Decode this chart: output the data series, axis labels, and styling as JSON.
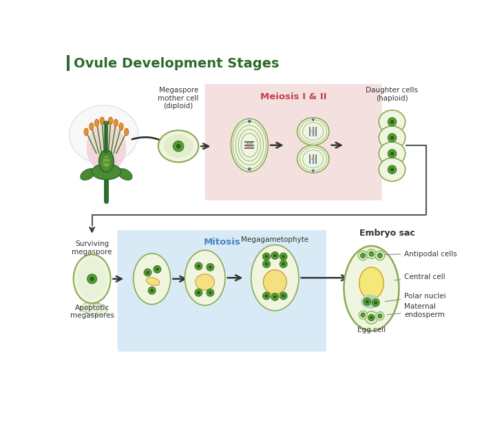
{
  "title": "Ovule Development Stages",
  "title_color": "#2d6a2d",
  "title_bar_color": "#2d6a2d",
  "background": "#ffffff",
  "top_row": {
    "meiosis_box_color": "#f5e0e0",
    "meiosis_title": "Meiosis I & II",
    "meiosis_title_color": "#c0404a",
    "megaspore_label": "Megaspore\nmother cell\n(diploid)",
    "daughter_label": "Daughter cells\n(haploid)"
  },
  "bottom_row": {
    "mitosis_box_color": "#d8eaf5",
    "mitosis_title": "Mitosis",
    "mitosis_title_color": "#4a80c0",
    "surviving_label": "Surviving\nmegaspore",
    "apoptotic_label": "Apoptotic\nmegaspores",
    "megagametophyte_label": "Megagametophyte",
    "embryo_sac_label": "Embryo sac"
  },
  "embryo_sac_labels": {
    "antipodal": "Antipodal cells",
    "central": "Central cell",
    "polar": "Polar nuclei",
    "maternal": "Maternal\nendosperm",
    "egg": "Egg cell"
  },
  "colors": {
    "cell_outer_fill": "#f0f5e0",
    "cell_outer_edge": "#8aaa50",
    "nucleus_fill": "#5a9e3a",
    "nucleus_edge": "#3a7a20",
    "nucleus_dark": "#2a6010",
    "yellow_vacuole": "#f5e080",
    "yellow_vacuole_edge": "#c8a040",
    "teal_region": "#b0d8c0",
    "arrow_color": "#333333",
    "label_text": "#333333",
    "green_dark": "#2d6a2d",
    "green_mid": "#4a8a30",
    "green_light": "#7aaa40",
    "pink_fill": "#e8b0b8",
    "petal_white": "#f5f5f5",
    "anther_orange": "#e89030"
  }
}
